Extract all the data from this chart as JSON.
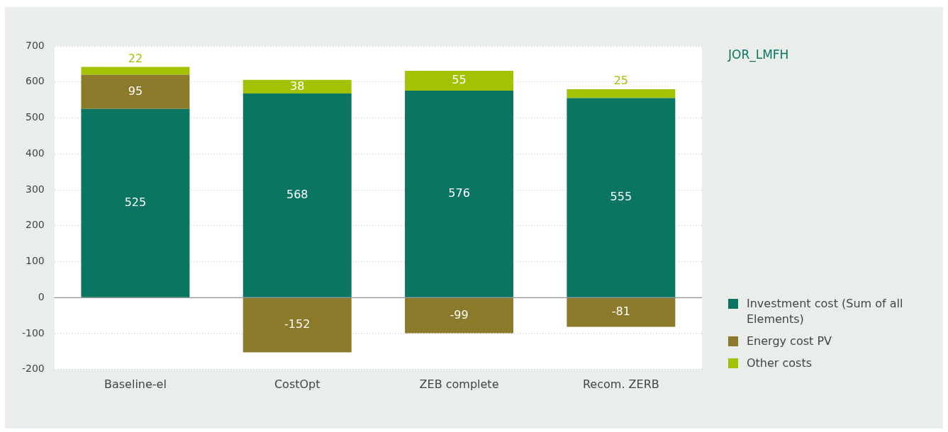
{
  "chart_data": {
    "type": "bar",
    "title": "JOR_LMFH",
    "categories": [
      "Baseline-el",
      "CostOpt",
      "ZEB complete",
      "Recom. ZERB"
    ],
    "series": [
      {
        "name": "Investment cost (Sum of all Elements)",
        "color": "#0a7561",
        "values": [
          525,
          568,
          576,
          555
        ]
      },
      {
        "name": "Energy cost PV",
        "color": "#8a7a2a",
        "values": [
          95,
          -152,
          -99,
          -81
        ]
      },
      {
        "name": "Other costs",
        "color": "#a2c204",
        "values": [
          22,
          38,
          55,
          25
        ]
      }
    ],
    "stacked": true,
    "ylim": [
      -200,
      700
    ],
    "yticks": [
      -200,
      -100,
      0,
      100,
      200,
      300,
      400,
      500,
      600,
      700
    ],
    "grid": "y",
    "legend": "bottom right",
    "data_labels": true
  }
}
